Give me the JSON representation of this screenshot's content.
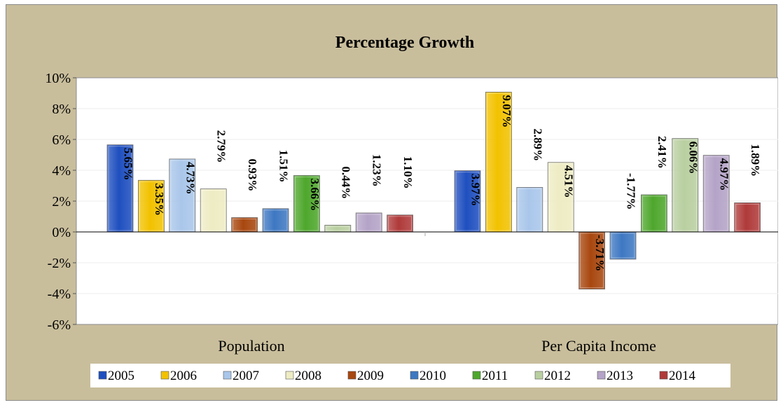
{
  "chart_data": {
    "type": "bar",
    "title": "Percentage Growth",
    "categories": [
      "Population",
      "Per Capita Income"
    ],
    "ylim": [
      -6,
      10
    ],
    "yticks": [
      10,
      8,
      6,
      4,
      2,
      0,
      -2,
      -4,
      -6
    ],
    "ytick_labels": [
      "10%",
      "8%",
      "6%",
      "4%",
      "2%",
      "0%",
      "-2%",
      "-4%",
      "-6%"
    ],
    "grid": true,
    "legend_position": "bottom",
    "series": [
      {
        "name": "2005",
        "values": [
          5.65,
          3.97
        ],
        "labels": [
          "5.65%",
          "3.97%"
        ],
        "color": "#1f4fbf"
      },
      {
        "name": "2006",
        "values": [
          3.35,
          9.07
        ],
        "labels": [
          "3.35%",
          "9.07%"
        ],
        "color": "#f2c200"
      },
      {
        "name": "2007",
        "values": [
          4.73,
          2.89
        ],
        "labels": [
          "4.73%",
          "2.89%"
        ],
        "color": "#a9c6ea"
      },
      {
        "name": "2008",
        "values": [
          2.79,
          4.51
        ],
        "labels": [
          "2.79%",
          "4.51%"
        ],
        "color": "#eeecc3"
      },
      {
        "name": "2009",
        "values": [
          0.93,
          -3.71
        ],
        "labels": [
          "0.93%",
          "-3.71%"
        ],
        "color": "#a8470f"
      },
      {
        "name": "2010",
        "values": [
          1.51,
          -1.77
        ],
        "labels": [
          "1.51%",
          "-1.77%"
        ],
        "color": "#3e78c2"
      },
      {
        "name": "2011",
        "values": [
          3.66,
          2.41
        ],
        "labels": [
          "3.66%",
          "2.41%"
        ],
        "color": "#4ea72c"
      },
      {
        "name": "2012",
        "values": [
          0.44,
          6.06
        ],
        "labels": [
          "0.44%",
          "6.06%"
        ],
        "color": "#b9cfa0"
      },
      {
        "name": "2013",
        "values": [
          1.23,
          4.97
        ],
        "labels": [
          "1.23%",
          "4.97%"
        ],
        "color": "#b4a3c7"
      },
      {
        "name": "2014",
        "values": [
          1.1,
          1.89
        ],
        "labels": [
          "1.10%",
          "1.89%"
        ],
        "color": "#b03a3a"
      }
    ]
  }
}
